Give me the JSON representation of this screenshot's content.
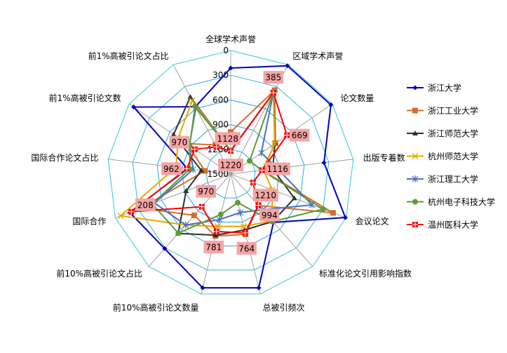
{
  "chart_data": {
    "type": "radar",
    "title": "",
    "axes": [
      "全球学术声誉",
      "区域学术声誉",
      "论文数量",
      "出版专着数",
      "会议论文",
      "标准化论文引用影响指数",
      "总被引频次",
      "前10%高被引论文数量",
      "前10%高被引论文占比",
      "国际合作",
      "国际合作论文占比",
      "前1%高被引论文数",
      "前1%高被引论文占比"
    ],
    "radial_range": [
      0,
      1500
    ],
    "radial_reversed": true,
    "radial_ticks": [
      "0",
      "300",
      "600",
      "900",
      "1200",
      "1500"
    ],
    "radial_tick_values": [
      0,
      300,
      600,
      900,
      1200,
      1500
    ],
    "legend_position": "right",
    "series": [
      {
        "name": "浙江大学",
        "color": "#0000c0",
        "marker": "diamond",
        "values": [
          213,
          15,
          20,
          358,
          10,
          716,
          77,
          77,
          290,
          188,
          972,
          68,
          577
        ]
      },
      {
        "name": "浙江工业大学",
        "color": "#d0702c",
        "marker": "square",
        "values": [
          989,
          350,
          840,
          1115,
          170,
          990,
          745,
          725,
          830,
          330,
          1185,
          850,
          1100
        ]
      },
      {
        "name": "浙江师范大学",
        "color": "#303030",
        "marker": "triangle",
        "values": [
          1215,
          385,
          845,
          986,
          673,
          730,
          800,
          735,
          537,
          920,
          1140,
          656,
          443
        ]
      },
      {
        "name": "杭州师范大学",
        "color": "#e6a800",
        "marker": "x",
        "values": [
          1215,
          385,
          850,
          1100,
          960,
          740,
          845,
          845,
          673,
          70,
          830,
          725,
          494
        ]
      },
      {
        "name": "浙江理工大学",
        "color": "#4472c4",
        "marker": "star",
        "values": [
          1215,
          385,
          1048,
          930,
          443,
          920,
          1018,
          930,
          673,
          510,
          1040,
          890,
          590
        ]
      },
      {
        "name": "杭州电子科技大学",
        "color": "#5b9b3a",
        "marker": "circle",
        "values": [
          1215,
          385,
          1220,
          1120,
          300,
          730,
          1142,
          995,
          540,
          480,
          1000,
          893,
          570
        ]
      },
      {
        "name": "温州医科大学",
        "color": "#ff0000",
        "marker": "square-plus",
        "values": [
          1220,
          385,
          669,
          1116,
          1210,
          994,
          764,
          781,
          970,
          208,
          962,
          970,
          1128
        ],
        "data_labels": [
          "1220",
          "385",
          "669",
          "1116",
          "1210",
          "994",
          "764",
          "781",
          "970",
          "208",
          "962",
          "970",
          "1128"
        ]
      }
    ],
    "data_label_bg": "#f4a4a4"
  }
}
